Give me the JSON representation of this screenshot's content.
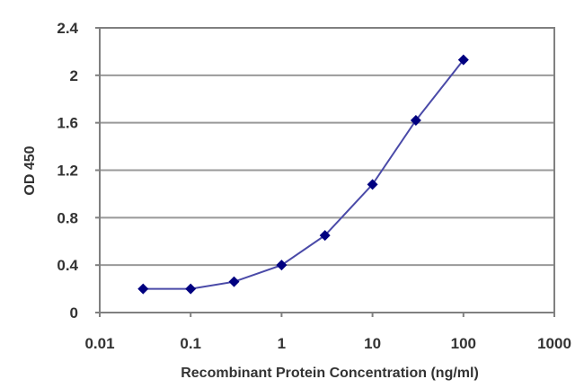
{
  "chart_data": {
    "type": "line",
    "title": "",
    "xlabel": "Recombinant Protein Concentration (ng/ml)",
    "ylabel": "OD 450",
    "x_scale": "log",
    "xlim": [
      0.01,
      1000
    ],
    "ylim": [
      0,
      2.4
    ],
    "x_ticks": [
      "0.01",
      "0.1",
      "1",
      "10",
      "100",
      "1000"
    ],
    "y_ticks": [
      "0",
      "0.4",
      "0.8",
      "1.2",
      "1.6",
      "2",
      "2.4"
    ],
    "grid": {
      "horizontal": true,
      "vertical": false
    },
    "legend": null,
    "series": [
      {
        "name": "OD 450",
        "color": "#000080",
        "line_color": "#4a4aa8",
        "marker": "diamond",
        "x": [
          0.03,
          0.1,
          0.3,
          1,
          3,
          10,
          30,
          100
        ],
        "values": [
          0.2,
          0.2,
          0.26,
          0.4,
          0.65,
          1.08,
          1.62,
          2.13
        ]
      }
    ]
  },
  "colors": {
    "axis": "#808080",
    "grid": "#999999",
    "text": "#333333"
  }
}
